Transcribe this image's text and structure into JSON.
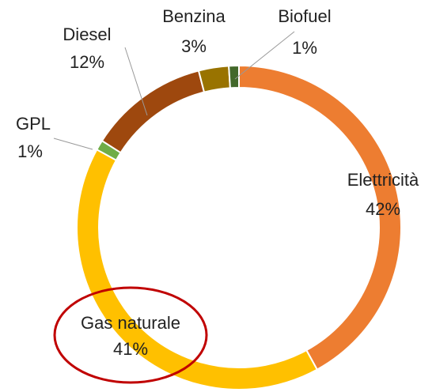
{
  "chart_data": {
    "type": "donut",
    "categories": [
      "Elettricità",
      "Gas naturale",
      "GPL",
      "Diesel",
      "Benzina",
      "Biofuel"
    ],
    "values": [
      42,
      41,
      1,
      12,
      3,
      1
    ],
    "value_labels": [
      "42%",
      "41%",
      "1%",
      "12%",
      "3%",
      "1%"
    ],
    "colors": [
      "#ed7d31",
      "#ffc000",
      "#70ad47",
      "#9e480e",
      "#997300",
      "#43682b"
    ]
  }
}
